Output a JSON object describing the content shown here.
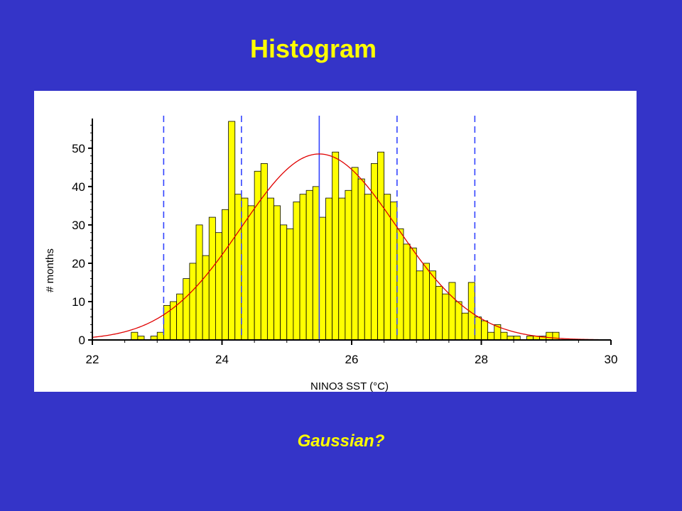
{
  "slide": {
    "title": "Histogram",
    "caption": "Gaussian?"
  },
  "chart_data": {
    "type": "bar",
    "xlabel": "NINO3 SST (°C)",
    "ylabel": "# months",
    "xlim": [
      22,
      30
    ],
    "ylim": [
      0,
      57
    ],
    "xticks": [
      22,
      24,
      26,
      28,
      30
    ],
    "yticks": [
      0,
      10,
      20,
      30,
      40,
      50
    ],
    "bin_width": 0.1,
    "bar_color": "#ffff00",
    "bar_edge_color": "#000000",
    "series": [
      {
        "type": "histogram",
        "bin_starts": [
          22.6,
          22.7,
          22.8,
          22.9,
          23.0,
          23.1,
          23.2,
          23.3,
          23.4,
          23.5,
          23.6,
          23.7,
          23.8,
          23.9,
          24.0,
          24.1,
          24.2,
          24.3,
          24.4,
          24.5,
          24.6,
          24.7,
          24.8,
          24.9,
          25.0,
          25.1,
          25.2,
          25.3,
          25.4,
          25.5,
          25.6,
          25.7,
          25.8,
          25.9,
          26.0,
          26.1,
          26.2,
          26.3,
          26.4,
          26.5,
          26.6,
          26.7,
          26.8,
          26.9,
          27.0,
          27.1,
          27.2,
          27.3,
          27.4,
          27.5,
          27.6,
          27.7,
          27.8,
          27.9,
          28.0,
          28.1,
          28.2,
          28.3,
          28.4,
          28.5,
          28.6,
          28.7,
          28.8,
          28.9,
          29.0,
          29.1
        ],
        "counts": [
          2,
          1,
          0,
          1,
          2,
          9,
          10,
          12,
          16,
          20,
          30,
          22,
          32,
          28,
          34,
          57,
          38,
          37,
          35,
          44,
          46,
          37,
          35,
          30,
          29,
          36,
          38,
          39,
          40,
          32,
          37,
          49,
          37,
          39,
          45,
          42,
          38,
          46,
          49,
          38,
          36,
          29,
          25,
          24,
          18,
          20,
          18,
          14,
          12,
          15,
          10,
          7,
          15,
          6,
          5,
          2,
          4,
          2,
          1,
          1,
          0,
          1,
          1,
          1,
          2,
          2
        ]
      },
      {
        "type": "gaussian_fit",
        "mean": 25.5,
        "sd": 1.2,
        "peak": 48.5,
        "line_color": "#e00000"
      }
    ],
    "vertical_lines": [
      {
        "x": 25.5,
        "style": "solid",
        "color": "#3344ff"
      },
      {
        "x": 23.1,
        "style": "dashed",
        "color": "#3344ff"
      },
      {
        "x": 24.3,
        "style": "dashed",
        "color": "#3344ff"
      },
      {
        "x": 26.7,
        "style": "dashed",
        "color": "#3344ff"
      },
      {
        "x": 27.9,
        "style": "dashed",
        "color": "#3344ff"
      }
    ],
    "grid": false,
    "legend": "none"
  }
}
